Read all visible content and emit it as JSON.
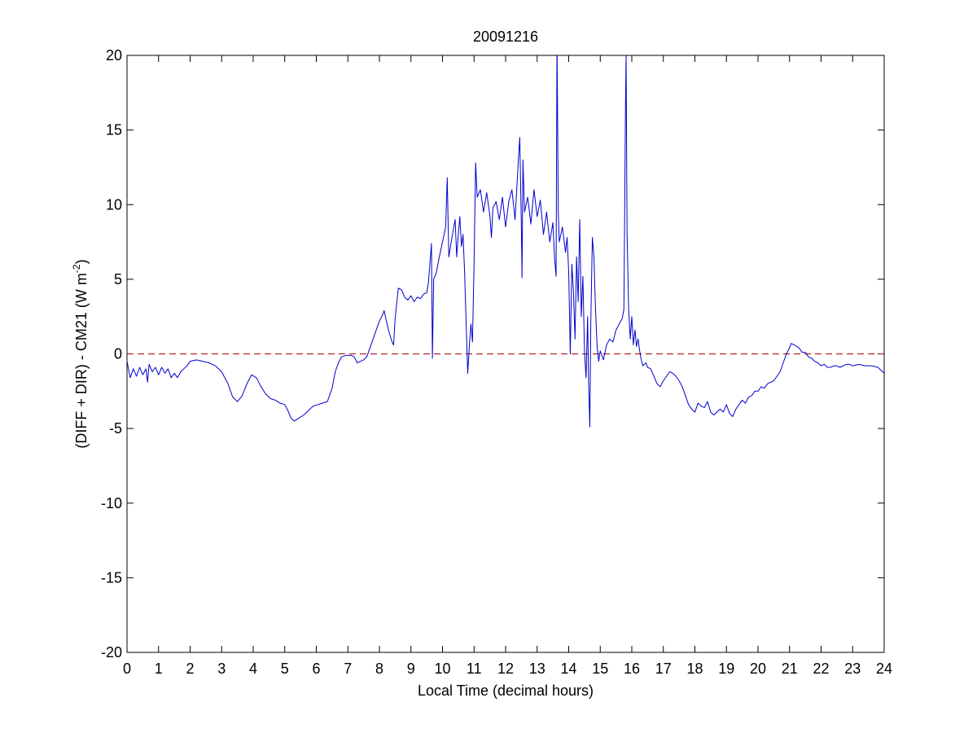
{
  "chart_data": {
    "type": "line",
    "title": "20091216",
    "xlabel": "Local Time (decimal hours)",
    "ylabel": {
      "prefix": "(DIFF + DIR) - CM21 (W m",
      "sup": "-2",
      "suffix": ")"
    },
    "xlim": [
      0,
      24
    ],
    "ylim": [
      -20,
      20
    ],
    "xticks": [
      0,
      1,
      2,
      3,
      4,
      5,
      6,
      7,
      8,
      9,
      10,
      11,
      12,
      13,
      14,
      15,
      16,
      17,
      18,
      19,
      20,
      21,
      22,
      23,
      24
    ],
    "yticks": [
      -20,
      -15,
      -10,
      -5,
      0,
      5,
      10,
      15,
      20
    ],
    "grid": false,
    "reference_line": {
      "y": 0,
      "style": "dashed",
      "color": "#b22222"
    },
    "series": [
      {
        "color": "#0000cc",
        "points": [
          [
            0.0,
            -0.5
          ],
          [
            0.1,
            -1.6
          ],
          [
            0.2,
            -1.0
          ],
          [
            0.3,
            -1.5
          ],
          [
            0.4,
            -0.9
          ],
          [
            0.5,
            -1.4
          ],
          [
            0.6,
            -1.0
          ],
          [
            0.65,
            -1.9
          ],
          [
            0.7,
            -0.7
          ],
          [
            0.8,
            -1.2
          ],
          [
            0.9,
            -0.9
          ],
          [
            1.0,
            -1.4
          ],
          [
            1.1,
            -0.9
          ],
          [
            1.2,
            -1.3
          ],
          [
            1.3,
            -1.0
          ],
          [
            1.4,
            -1.6
          ],
          [
            1.5,
            -1.3
          ],
          [
            1.6,
            -1.6
          ],
          [
            1.7,
            -1.2
          ],
          [
            1.8,
            -1.0
          ],
          [
            1.9,
            -0.8
          ],
          [
            2.0,
            -0.5
          ],
          [
            2.2,
            -0.4
          ],
          [
            2.4,
            -0.5
          ],
          [
            2.6,
            -0.6
          ],
          [
            2.8,
            -0.8
          ],
          [
            3.0,
            -1.2
          ],
          [
            3.2,
            -2.0
          ],
          [
            3.35,
            -2.9
          ],
          [
            3.5,
            -3.2
          ],
          [
            3.65,
            -2.8
          ],
          [
            3.8,
            -2.0
          ],
          [
            3.95,
            -1.4
          ],
          [
            4.1,
            -1.6
          ],
          [
            4.25,
            -2.2
          ],
          [
            4.4,
            -2.7
          ],
          [
            4.55,
            -3.0
          ],
          [
            4.7,
            -3.1
          ],
          [
            4.85,
            -3.3
          ],
          [
            5.0,
            -3.4
          ],
          [
            5.1,
            -3.8
          ],
          [
            5.2,
            -4.3
          ],
          [
            5.3,
            -4.5
          ],
          [
            5.45,
            -4.3
          ],
          [
            5.6,
            -4.1
          ],
          [
            5.75,
            -3.8
          ],
          [
            5.9,
            -3.5
          ],
          [
            6.05,
            -3.4
          ],
          [
            6.2,
            -3.3
          ],
          [
            6.35,
            -3.2
          ],
          [
            6.5,
            -2.3
          ],
          [
            6.6,
            -1.2
          ],
          [
            6.7,
            -0.6
          ],
          [
            6.8,
            -0.2
          ],
          [
            6.95,
            -0.1
          ],
          [
            7.1,
            -0.1
          ],
          [
            7.2,
            -0.2
          ],
          [
            7.3,
            -0.6
          ],
          [
            7.4,
            -0.5
          ],
          [
            7.5,
            -0.4
          ],
          [
            7.6,
            -0.2
          ],
          [
            7.7,
            0.4
          ],
          [
            7.8,
            1.0
          ],
          [
            7.9,
            1.6
          ],
          [
            8.0,
            2.2
          ],
          [
            8.1,
            2.6
          ],
          [
            8.15,
            2.9
          ],
          [
            8.2,
            2.4
          ],
          [
            8.3,
            1.5
          ],
          [
            8.4,
            0.8
          ],
          [
            8.45,
            0.6
          ],
          [
            8.5,
            2.4
          ],
          [
            8.6,
            4.4
          ],
          [
            8.7,
            4.3
          ],
          [
            8.8,
            3.8
          ],
          [
            8.9,
            3.6
          ],
          [
            9.0,
            3.9
          ],
          [
            9.1,
            3.5
          ],
          [
            9.2,
            3.8
          ],
          [
            9.3,
            3.7
          ],
          [
            9.4,
            4.0
          ],
          [
            9.5,
            4.1
          ],
          [
            9.55,
            4.7
          ],
          [
            9.6,
            6.0
          ],
          [
            9.65,
            7.4
          ],
          [
            9.68,
            -0.3
          ],
          [
            9.72,
            5.0
          ],
          [
            9.8,
            5.4
          ],
          [
            9.9,
            6.5
          ],
          [
            10.0,
            7.5
          ],
          [
            10.1,
            8.5
          ],
          [
            10.15,
            11.8
          ],
          [
            10.2,
            6.5
          ],
          [
            10.3,
            7.8
          ],
          [
            10.4,
            9.0
          ],
          [
            10.45,
            6.5
          ],
          [
            10.5,
            8.0
          ],
          [
            10.55,
            9.2
          ],
          [
            10.6,
            7.2
          ],
          [
            10.65,
            8.0
          ],
          [
            10.7,
            5.5
          ],
          [
            10.75,
            2.0
          ],
          [
            10.8,
            -1.3
          ],
          [
            10.85,
            0.5
          ],
          [
            10.9,
            2.0
          ],
          [
            10.95,
            0.8
          ],
          [
            11.0,
            6.0
          ],
          [
            11.05,
            12.8
          ],
          [
            11.1,
            10.5
          ],
          [
            11.2,
            11.0
          ],
          [
            11.3,
            9.5
          ],
          [
            11.4,
            10.8
          ],
          [
            11.5,
            9.3
          ],
          [
            11.55,
            7.8
          ],
          [
            11.6,
            9.8
          ],
          [
            11.7,
            10.2
          ],
          [
            11.8,
            9.0
          ],
          [
            11.9,
            10.5
          ],
          [
            12.0,
            8.5
          ],
          [
            12.1,
            10.2
          ],
          [
            12.2,
            11.0
          ],
          [
            12.3,
            9.0
          ],
          [
            12.4,
            12.8
          ],
          [
            12.45,
            14.5
          ],
          [
            12.5,
            8.5
          ],
          [
            12.52,
            5.1
          ],
          [
            12.55,
            13.0
          ],
          [
            12.6,
            9.5
          ],
          [
            12.7,
            10.5
          ],
          [
            12.8,
            8.7
          ],
          [
            12.9,
            11.0
          ],
          [
            13.0,
            9.2
          ],
          [
            13.1,
            10.3
          ],
          [
            13.2,
            8.0
          ],
          [
            13.3,
            9.5
          ],
          [
            13.4,
            7.5
          ],
          [
            13.5,
            8.8
          ],
          [
            13.55,
            6.5
          ],
          [
            13.6,
            5.2
          ],
          [
            13.63,
            21.0
          ],
          [
            13.67,
            9.5
          ],
          [
            13.7,
            7.5
          ],
          [
            13.8,
            8.5
          ],
          [
            13.9,
            6.8
          ],
          [
            13.95,
            7.8
          ],
          [
            14.0,
            5.5
          ],
          [
            14.05,
            0.0
          ],
          [
            14.1,
            6.0
          ],
          [
            14.15,
            4.2
          ],
          [
            14.2,
            1.0
          ],
          [
            14.25,
            6.5
          ],
          [
            14.3,
            3.5
          ],
          [
            14.35,
            9.0
          ],
          [
            14.4,
            2.5
          ],
          [
            14.45,
            5.2
          ],
          [
            14.5,
            0.2
          ],
          [
            14.55,
            -1.6
          ],
          [
            14.6,
            2.5
          ],
          [
            14.63,
            -1.8
          ],
          [
            14.67,
            -4.9
          ],
          [
            14.7,
            2.0
          ],
          [
            14.75,
            7.8
          ],
          [
            14.8,
            6.5
          ],
          [
            14.85,
            3.0
          ],
          [
            14.9,
            0.5
          ],
          [
            14.95,
            -0.5
          ],
          [
            15.0,
            0.2
          ],
          [
            15.1,
            -0.4
          ],
          [
            15.2,
            0.6
          ],
          [
            15.3,
            1.0
          ],
          [
            15.4,
            0.8
          ],
          [
            15.5,
            1.6
          ],
          [
            15.6,
            2.0
          ],
          [
            15.7,
            2.4
          ],
          [
            15.75,
            3.0
          ],
          [
            15.8,
            16.5
          ],
          [
            15.82,
            20.0
          ],
          [
            15.85,
            8.0
          ],
          [
            15.9,
            3.0
          ],
          [
            15.95,
            1.0
          ],
          [
            16.0,
            2.5
          ],
          [
            16.05,
            0.6
          ],
          [
            16.1,
            1.6
          ],
          [
            16.15,
            0.5
          ],
          [
            16.2,
            1.0
          ],
          [
            16.25,
            0.2
          ],
          [
            16.3,
            -0.4
          ],
          [
            16.35,
            -0.8
          ],
          [
            16.45,
            -0.6
          ],
          [
            16.5,
            -0.9
          ],
          [
            16.6,
            -1.0
          ],
          [
            16.7,
            -1.5
          ],
          [
            16.8,
            -2.0
          ],
          [
            16.9,
            -2.2
          ],
          [
            17.0,
            -1.8
          ],
          [
            17.1,
            -1.5
          ],
          [
            17.2,
            -1.2
          ],
          [
            17.3,
            -1.3
          ],
          [
            17.4,
            -1.5
          ],
          [
            17.5,
            -1.8
          ],
          [
            17.6,
            -2.2
          ],
          [
            17.7,
            -2.8
          ],
          [
            17.8,
            -3.4
          ],
          [
            17.9,
            -3.7
          ],
          [
            18.0,
            -3.9
          ],
          [
            18.1,
            -3.3
          ],
          [
            18.2,
            -3.5
          ],
          [
            18.3,
            -3.6
          ],
          [
            18.4,
            -3.2
          ],
          [
            18.5,
            -3.9
          ],
          [
            18.6,
            -4.1
          ],
          [
            18.7,
            -3.9
          ],
          [
            18.8,
            -3.7
          ],
          [
            18.9,
            -3.9
          ],
          [
            19.0,
            -3.4
          ],
          [
            19.1,
            -4.0
          ],
          [
            19.2,
            -4.2
          ],
          [
            19.3,
            -3.7
          ],
          [
            19.4,
            -3.4
          ],
          [
            19.5,
            -3.1
          ],
          [
            19.6,
            -3.3
          ],
          [
            19.7,
            -2.9
          ],
          [
            19.8,
            -2.8
          ],
          [
            19.9,
            -2.5
          ],
          [
            20.0,
            -2.5
          ],
          [
            20.1,
            -2.2
          ],
          [
            20.2,
            -2.3
          ],
          [
            20.3,
            -2.0
          ],
          [
            20.4,
            -1.9
          ],
          [
            20.5,
            -1.8
          ],
          [
            20.6,
            -1.5
          ],
          [
            20.7,
            -1.2
          ],
          [
            20.8,
            -0.6
          ],
          [
            20.9,
            0.0
          ],
          [
            21.0,
            0.4
          ],
          [
            21.05,
            0.7
          ],
          [
            21.15,
            0.6
          ],
          [
            21.3,
            0.4
          ],
          [
            21.4,
            0.1
          ],
          [
            21.5,
            0.1
          ],
          [
            21.6,
            -0.2
          ],
          [
            21.7,
            -0.3
          ],
          [
            21.8,
            -0.5
          ],
          [
            21.9,
            -0.6
          ],
          [
            22.0,
            -0.8
          ],
          [
            22.1,
            -0.7
          ],
          [
            22.2,
            -0.9
          ],
          [
            22.3,
            -0.9
          ],
          [
            22.4,
            -0.8
          ],
          [
            22.5,
            -0.8
          ],
          [
            22.6,
            -0.9
          ],
          [
            22.7,
            -0.8
          ],
          [
            22.8,
            -0.7
          ],
          [
            22.9,
            -0.7
          ],
          [
            23.0,
            -0.8
          ],
          [
            23.2,
            -0.7
          ],
          [
            23.4,
            -0.8
          ],
          [
            23.6,
            -0.8
          ],
          [
            23.8,
            -0.9
          ],
          [
            24.0,
            -1.3
          ]
        ]
      }
    ]
  }
}
